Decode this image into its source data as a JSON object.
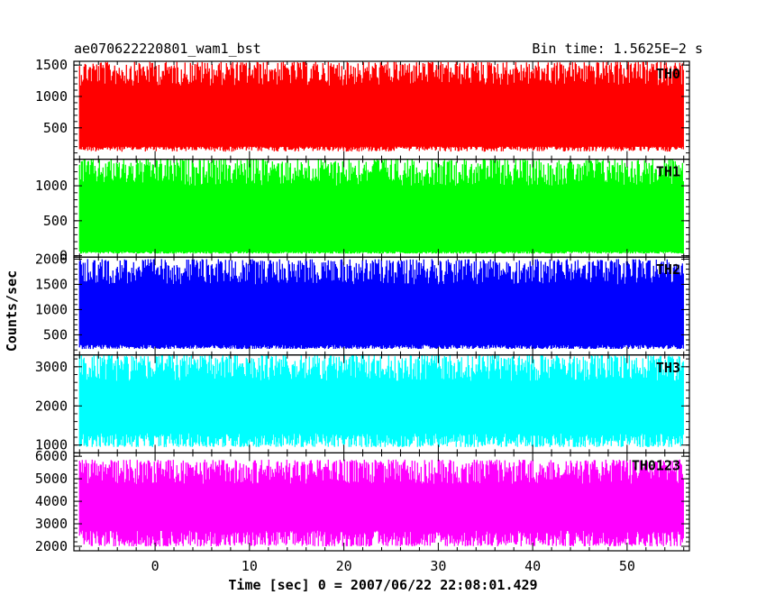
{
  "chart_data": {
    "type": "line",
    "title_left": "ae070622220801_wam1_bst",
    "title_right": "Bin time: 1.5625E−2 s",
    "ylabel": "Counts/sec",
    "xlabel": "Time [sec] 0 = 2007/06/22 22:08:01.429",
    "xlim": [
      -8.6,
      56.6
    ],
    "data_range": [
      -8.0,
      56.0
    ],
    "x_ticks": [
      0,
      10,
      20,
      30,
      40,
      50
    ],
    "x_minor_step": 2,
    "panels": [
      {
        "name": "TH0",
        "color": "#ff0000",
        "ylim": [
          0,
          1560
        ],
        "ticks": [
          500,
          1000,
          1500
        ],
        "minor_step": 100,
        "band": [
          200,
          1550
        ],
        "fill_low": 120
      },
      {
        "name": "TH1",
        "color": "#00ff00",
        "ylim": [
          -20,
          1380
        ],
        "ticks": [
          0,
          500,
          1000
        ],
        "minor_step": 100,
        "band": [
          30,
          1380
        ],
        "fill_low": 60
      },
      {
        "name": "TH2",
        "color": "#0000ff",
        "ylim": [
          100,
          2040
        ],
        "ticks": [
          500,
          1000,
          1500,
          2000
        ],
        "minor_step": 100,
        "band": [
          220,
          2000
        ],
        "fill_low": 300
      },
      {
        "name": "TH3",
        "color": "#00ffff",
        "ylim": [
          800,
          3300
        ],
        "ticks": [
          1000,
          2000,
          3000
        ],
        "minor_step": 200,
        "band": [
          950,
          3300
        ],
        "fill_low": 1300
      },
      {
        "name": "TH0123",
        "color": "#ff00ff",
        "ylim": [
          1800,
          6150
        ],
        "ticks": [
          2000,
          3000,
          4000,
          5000,
          6000
        ],
        "minor_step": 200,
        "band": [
          2000,
          5850
        ],
        "fill_low": 2700
      }
    ]
  }
}
